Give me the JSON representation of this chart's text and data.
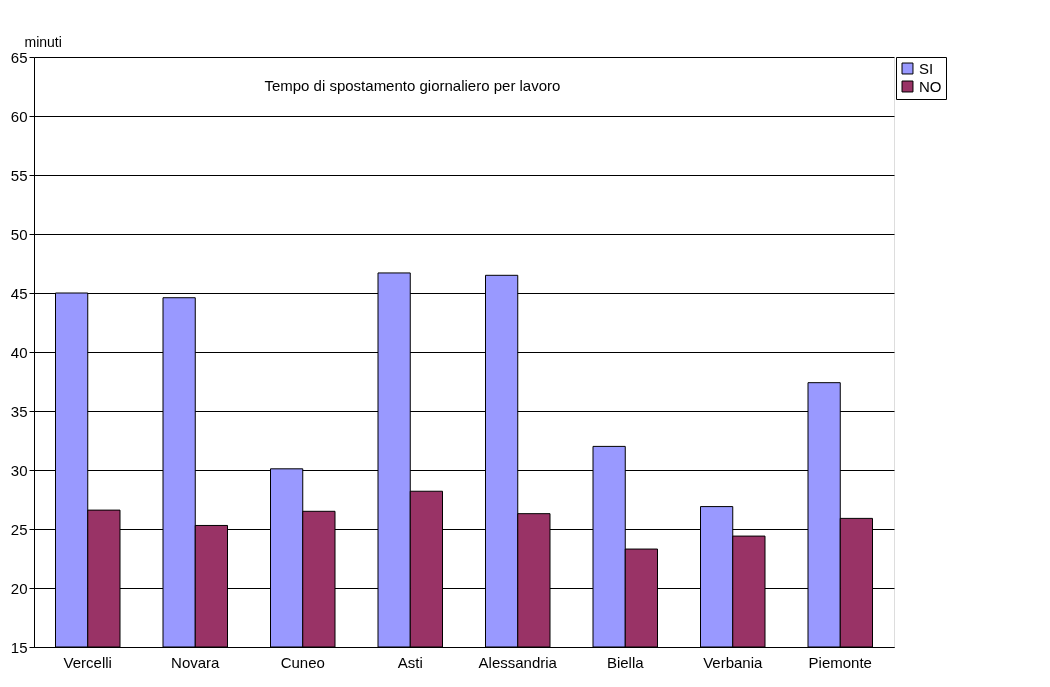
{
  "chart_data": {
    "type": "bar",
    "title": "Tempo di spostamento giornaliero per lavoro",
    "ylabel": "minuti",
    "categories": [
      "Vercelli",
      "Novara",
      "Cuneo",
      "Asti",
      "Alessandria",
      "Biella",
      "Verbania",
      "Piemonte"
    ],
    "series": [
      {
        "name": "SI",
        "color": "#9999ff",
        "values": [
          45.0,
          44.6,
          30.1,
          46.7,
          46.5,
          32.0,
          26.9,
          37.4
        ]
      },
      {
        "name": "NO",
        "color": "#993366",
        "values": [
          26.6,
          25.3,
          26.5,
          28.2,
          26.3,
          23.3,
          24.4,
          25.9
        ]
      }
    ],
    "ylim": [
      15,
      65
    ],
    "yticks": [
      15,
      20,
      25,
      30,
      35,
      40,
      45,
      50,
      55,
      60,
      65
    ],
    "grid": "y",
    "legend": "right"
  }
}
